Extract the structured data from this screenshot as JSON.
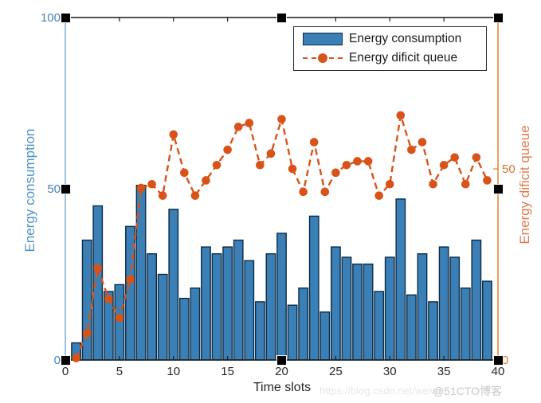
{
  "page": {
    "background": "#ffffff"
  },
  "watermark": {
    "url_text": "https://blog.csdn.net/weiwei",
    "badge_text": "@51CTO博客"
  },
  "chart_data": {
    "type": "combo-bar-line",
    "title": "",
    "xlabel": "Time slots",
    "x": [
      1,
      2,
      3,
      4,
      5,
      6,
      7,
      8,
      9,
      10,
      11,
      12,
      13,
      14,
      15,
      16,
      17,
      18,
      19,
      20,
      21,
      22,
      23,
      24,
      25,
      26,
      27,
      28,
      29,
      30,
      31,
      32,
      33,
      34,
      35,
      36,
      37,
      38,
      39
    ],
    "x_axis": {
      "range": [
        0,
        40
      ],
      "ticks": [
        0,
        5,
        10,
        15,
        20,
        25,
        30,
        35,
        40
      ],
      "color": "#1a1a1a"
    },
    "left_axis": {
      "label": "Energy consumption",
      "range": [
        0,
        100
      ],
      "ticks": [
        0,
        50,
        100
      ],
      "spine_color": "#74a9d2",
      "tick_label_color": "#4682b4"
    },
    "right_axis": {
      "label": "Energy dificit queue",
      "range": [
        0,
        89.6
      ],
      "ticks": [
        0,
        50
      ],
      "spine_color": "#e07b24",
      "tick_label_color": "#d9722e",
      "label_color": "#e2794e"
    },
    "grid": false,
    "legend_position": "top-right",
    "series": [
      {
        "name": "Energy consumption",
        "type": "bar",
        "axis": "left",
        "fill": "#3a7fb5",
        "edge": "#0e2c45",
        "values": [
          5,
          35,
          45,
          20,
          22,
          39,
          51,
          31,
          25,
          44,
          18,
          21,
          33,
          31,
          33,
          35,
          29,
          17,
          31,
          37,
          16,
          21,
          42,
          14,
          33,
          30,
          28,
          28,
          20,
          30,
          47,
          19,
          31,
          17,
          33,
          30,
          21,
          35,
          23
        ]
      },
      {
        "name": "Energy dificit queue",
        "type": "line",
        "axis": "right",
        "color": "#d95319",
        "dashed": true,
        "marker": "circle",
        "values": [
          0.5,
          7,
          24,
          16,
          11,
          21,
          45,
          46,
          43,
          59,
          49,
          43,
          47,
          51,
          55,
          61,
          62,
          51,
          54,
          63,
          50,
          44,
          57,
          44,
          49,
          51,
          52,
          52,
          43,
          46,
          64,
          55,
          57,
          46,
          51,
          53,
          46,
          53,
          47
        ]
      }
    ]
  }
}
